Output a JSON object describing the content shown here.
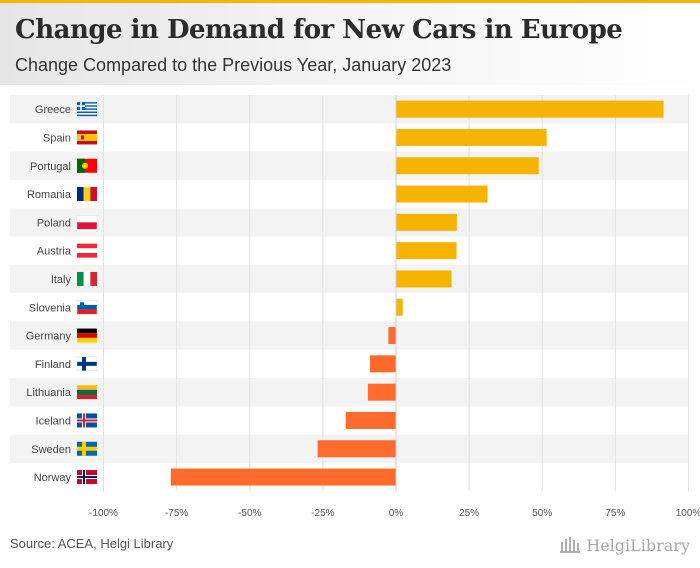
{
  "header": {
    "title": "Change in Demand for New Cars in Europe",
    "subtitle": "Change Compared to the Previous Year, January 2023"
  },
  "footer": {
    "source": "Source: ACEA, Helgi Library",
    "brand": "HelgiLibrary"
  },
  "colors": {
    "positive": "#f6b400",
    "negative": "#fe6b2c",
    "accent": "#f2b705"
  },
  "chart_data": {
    "type": "bar",
    "orientation": "horizontal",
    "categories": [
      "Greece",
      "Spain",
      "Portugal",
      "Romania",
      "Poland",
      "Austria",
      "Italy",
      "Slovenia",
      "Germany",
      "Finland",
      "Lithuania",
      "Iceland",
      "Sweden",
      "Norway"
    ],
    "values": [
      91.5,
      51.5,
      48.8,
      31.3,
      20.8,
      20.7,
      19.0,
      2.3,
      -2.6,
      -8.9,
      -9.6,
      -17.2,
      -26.8,
      -77.0
    ],
    "x_tick_labels": [
      "-100%",
      "-75%",
      "-50%",
      "-25%",
      "0%",
      "25%",
      "50%",
      "75%",
      "100%"
    ],
    "xlim": [
      -100,
      100
    ],
    "unit": "%",
    "grid": true
  }
}
